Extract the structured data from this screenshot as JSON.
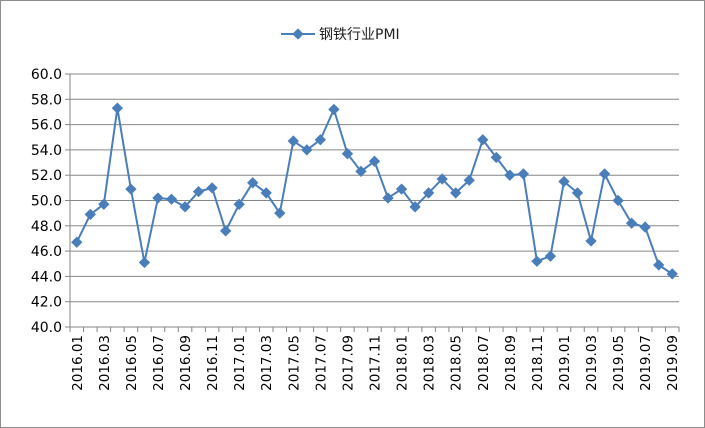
{
  "chart_data": {
    "type": "line",
    "title": "",
    "xlabel": "",
    "ylabel": "",
    "ylim": [
      40,
      60
    ],
    "yticks": [
      "40.0",
      "42.0",
      "44.0",
      "46.0",
      "48.0",
      "50.0",
      "52.0",
      "54.0",
      "56.0",
      "58.0",
      "60.0"
    ],
    "grid": true,
    "legend_position": "top-center",
    "categories": [
      "2016.01",
      "2016.02",
      "2016.03",
      "2016.04",
      "2016.05",
      "2016.06",
      "2016.07",
      "2016.08",
      "2016.09",
      "2016.10",
      "2016.11",
      "2016.12",
      "2017.01",
      "2017.02",
      "2017.03",
      "2017.04",
      "2017.05",
      "2017.06",
      "2017.07",
      "2017.08",
      "2017.09",
      "2017.10",
      "2017.11",
      "2017.12",
      "2018.01",
      "2018.02",
      "2018.03",
      "2018.04",
      "2018.05",
      "2018.06",
      "2018.07",
      "2018.08",
      "2018.09",
      "2018.10",
      "2018.11",
      "2018.12",
      "2019.01",
      "2019.02",
      "2019.03",
      "2019.04",
      "2019.05",
      "2019.06",
      "2019.07",
      "2019.08",
      "2019.09"
    ],
    "x_tick_labels": [
      "2016.01",
      "2016.03",
      "2016.05",
      "2016.07",
      "2016.09",
      "2016.11",
      "2017.01",
      "2017.03",
      "2017.05",
      "2017.07",
      "2017.09",
      "2017.11",
      "2018.01",
      "2018.03",
      "2018.05",
      "2018.07",
      "2018.09",
      "2018.11",
      "2019.01",
      "2019.03",
      "2019.05",
      "2019.07",
      "2019.09"
    ],
    "series": [
      {
        "name": "钢铁行业PMI",
        "color": "#4a7ebb",
        "marker": "diamond",
        "values": [
          46.7,
          48.9,
          49.7,
          57.3,
          50.9,
          45.1,
          50.2,
          50.1,
          49.5,
          50.7,
          51.0,
          47.6,
          49.7,
          51.4,
          50.6,
          49.0,
          54.7,
          54.0,
          54.8,
          57.2,
          53.7,
          52.3,
          53.1,
          50.2,
          50.9,
          49.5,
          50.6,
          51.7,
          50.6,
          51.6,
          54.8,
          53.4,
          52.0,
          52.1,
          45.2,
          45.6,
          51.5,
          50.6,
          46.8,
          52.1,
          50.0,
          48.2,
          47.9,
          44.9,
          44.2
        ]
      }
    ]
  }
}
